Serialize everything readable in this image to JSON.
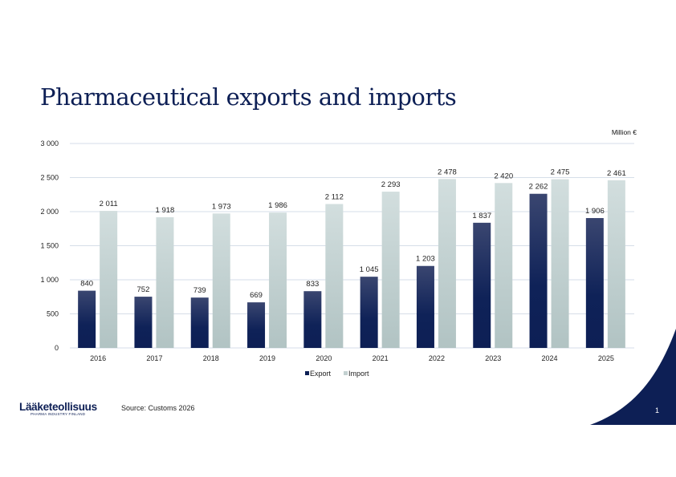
{
  "slide": {
    "title": "Pharmaceutical exports and imports",
    "source": "Source: Customs 2026",
    "page_number": "1",
    "logo_text": "Lääketeollisuus",
    "logo_subtext": "PHARMA INDUSTRY FINLAND"
  },
  "colors": {
    "export": "#0d1f55",
    "import": "#c3d1d1",
    "accent": "#0d1f55"
  },
  "chart_data": {
    "type": "bar",
    "title": "",
    "unit_label": "Million €",
    "categories": [
      "2016",
      "2017",
      "2018",
      "2019",
      "2020",
      "2021",
      "2022",
      "2023",
      "2024",
      "2025"
    ],
    "series": [
      {
        "name": "Export",
        "values": [
          840,
          752,
          739,
          669,
          833,
          1045,
          1203,
          1837,
          2262,
          1906
        ],
        "labels": [
          "840",
          "752",
          "739",
          "669",
          "833",
          "1 045",
          "1 203",
          "1 837",
          "2 262",
          "1 906"
        ]
      },
      {
        "name": "Import",
        "values": [
          2011,
          1918,
          1973,
          1986,
          2112,
          2293,
          2478,
          2420,
          2475,
          2461
        ],
        "labels": [
          "2 011",
          "1 918",
          "1 973",
          "1 986",
          "2 112",
          "2 293",
          "2 478",
          "2 420",
          "2 475",
          "2 461"
        ]
      }
    ],
    "yticks": [
      0,
      500,
      1000,
      1500,
      2000,
      2500,
      3000
    ],
    "ytick_labels": [
      "0",
      "500",
      "1 000",
      "1 500",
      "2 000",
      "2 500",
      "3 000"
    ],
    "ylim": [
      0,
      3000
    ],
    "grid": true,
    "legend": "bottom"
  }
}
